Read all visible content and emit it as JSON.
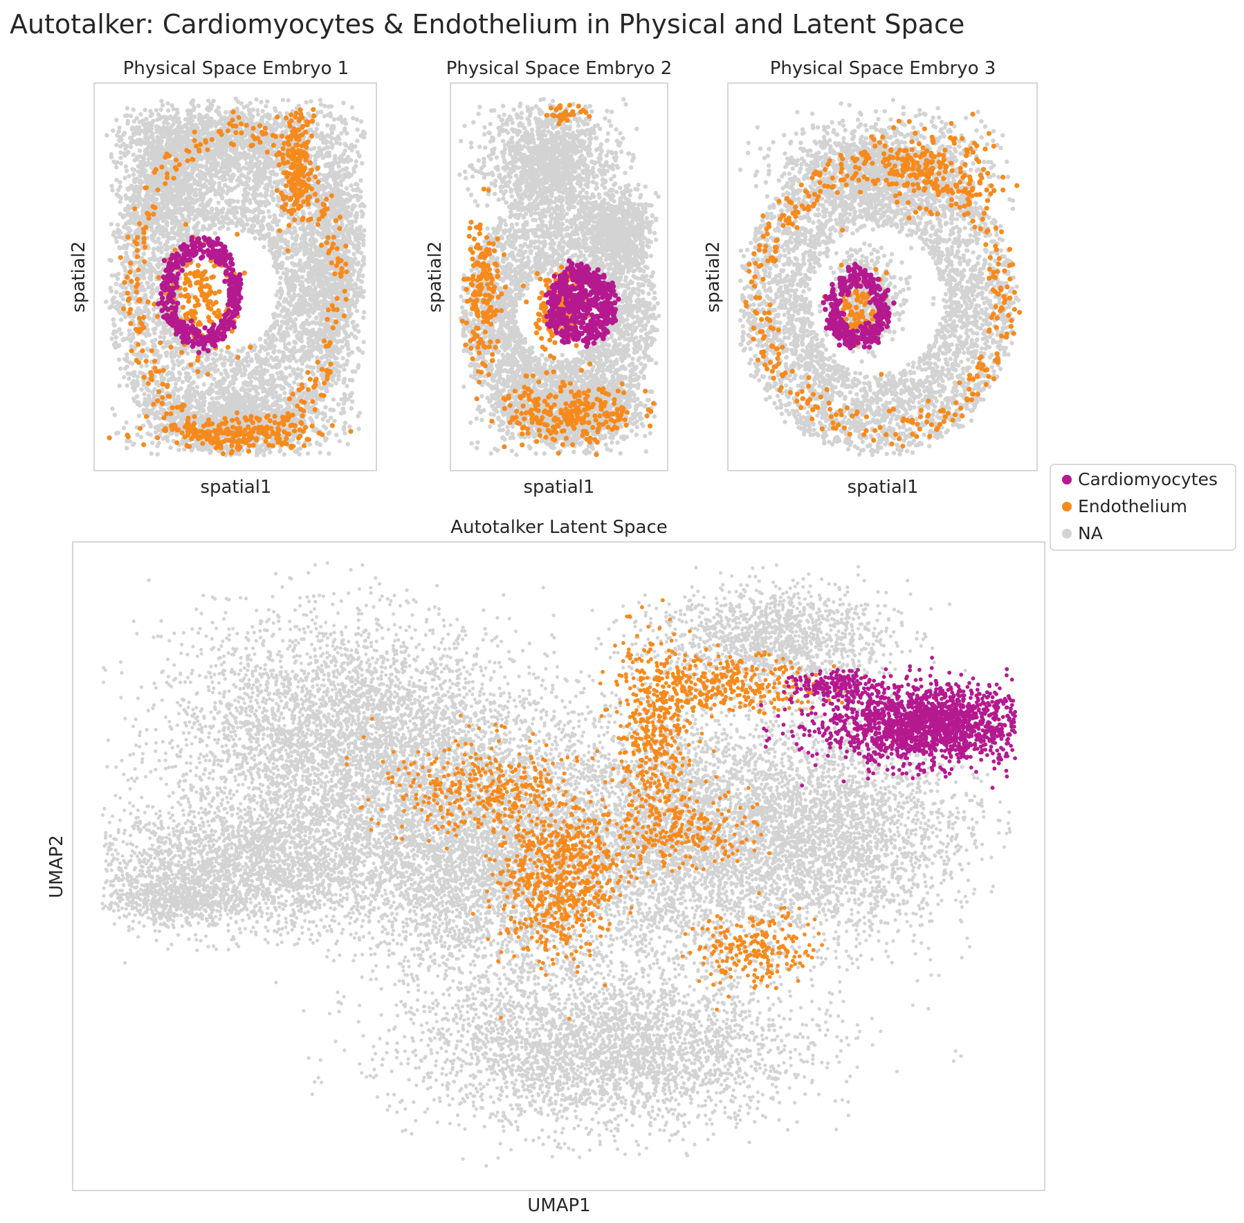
{
  "figure": {
    "title": "Autotalker: Cardiomyocytes & Endothelium in Physical and Latent Space"
  },
  "legend": {
    "placement": "right",
    "items": [
      {
        "label": "Cardiomyocytes",
        "color": "#b5198f"
      },
      {
        "label": "Endothelium",
        "color": "#f78a1c"
      },
      {
        "label": "NA",
        "color": "#d3d3d3"
      }
    ]
  },
  "chart_data": [
    {
      "type": "scatter",
      "title": "Physical Space Embryo 1",
      "xlabel": "spatial1",
      "ylabel": "spatial2",
      "ticks": "none",
      "grid": false,
      "series": [
        {
          "name": "NA",
          "color": "#d3d3d3",
          "marker_size": 3.2,
          "regions": [
            {
              "shape": "ring",
              "cx": 0.48,
              "cy": 0.53,
              "rx_in": 0.18,
              "rx_out": 0.43,
              "ry_in": 0.16,
              "ry_out": 0.45,
              "n": 3200
            },
            {
              "shape": "blob",
              "cx": 0.25,
              "cy": 0.25,
              "rx": 0.16,
              "ry": 0.18,
              "n": 900
            },
            {
              "shape": "blob",
              "cx": 0.5,
              "cy": 0.15,
              "rx": 0.35,
              "ry": 0.1,
              "n": 1100
            },
            {
              "shape": "blob",
              "cx": 0.85,
              "cy": 0.45,
              "rx": 0.12,
              "ry": 0.38,
              "n": 1200
            },
            {
              "shape": "blob",
              "cx": 0.5,
              "cy": 0.87,
              "rx": 0.34,
              "ry": 0.09,
              "n": 1000
            }
          ]
        },
        {
          "name": "Endothelium",
          "color": "#f78a1c",
          "marker_size": 3.6,
          "regions": [
            {
              "shape": "ring",
              "cx": 0.5,
              "cy": 0.52,
              "rx_in": 0.33,
              "rx_out": 0.4,
              "ry_in": 0.36,
              "ry_out": 0.44,
              "n": 320
            },
            {
              "shape": "blob",
              "cx": 0.72,
              "cy": 0.22,
              "rx": 0.06,
              "ry": 0.15,
              "n": 200
            },
            {
              "shape": "blob",
              "cx": 0.38,
              "cy": 0.56,
              "rx": 0.14,
              "ry": 0.14,
              "n": 180
            },
            {
              "shape": "blob",
              "cx": 0.5,
              "cy": 0.9,
              "rx": 0.3,
              "ry": 0.04,
              "n": 200
            }
          ]
        },
        {
          "name": "Cardiomyocytes",
          "color": "#b5198f",
          "marker_size": 3.8,
          "regions": [
            {
              "shape": "ring",
              "cx": 0.38,
              "cy": 0.54,
              "rx_in": 0.1,
              "rx_out": 0.14,
              "ry_in": 0.1,
              "ry_out": 0.14,
              "n": 420
            }
          ]
        }
      ]
    },
    {
      "type": "scatter",
      "title": "Physical Space Embryo 2",
      "xlabel": "spatial1",
      "ylabel": "spatial2",
      "ticks": "none",
      "grid": false,
      "series": [
        {
          "name": "NA",
          "color": "#d3d3d3",
          "marker_size": 3.2,
          "regions": [
            {
              "shape": "ring",
              "cx": 0.5,
              "cy": 0.6,
              "rx_in": 0.2,
              "rx_out": 0.45,
              "ry_in": 0.12,
              "ry_out": 0.32,
              "n": 3000
            },
            {
              "shape": "blob",
              "cx": 0.45,
              "cy": 0.2,
              "rx": 0.3,
              "ry": 0.14,
              "n": 1300
            },
            {
              "shape": "blob",
              "cx": 0.78,
              "cy": 0.38,
              "rx": 0.15,
              "ry": 0.1,
              "n": 600
            },
            {
              "shape": "blob",
              "cx": 0.55,
              "cy": 0.85,
              "rx": 0.35,
              "ry": 0.1,
              "n": 1000
            }
          ]
        },
        {
          "name": "Endothelium",
          "color": "#f78a1c",
          "marker_size": 3.6,
          "regions": [
            {
              "shape": "blob",
              "cx": 0.15,
              "cy": 0.55,
              "rx": 0.08,
              "ry": 0.18,
              "n": 180
            },
            {
              "shape": "blob",
              "cx": 0.55,
              "cy": 0.85,
              "rx": 0.3,
              "ry": 0.08,
              "n": 260
            },
            {
              "shape": "blob",
              "cx": 0.5,
              "cy": 0.58,
              "rx": 0.12,
              "ry": 0.1,
              "n": 180
            },
            {
              "shape": "blob",
              "cx": 0.52,
              "cy": 0.08,
              "rx": 0.08,
              "ry": 0.02,
              "n": 30
            }
          ]
        },
        {
          "name": "Cardiomyocytes",
          "color": "#b5198f",
          "marker_size": 3.8,
          "regions": [
            {
              "shape": "ring",
              "cx": 0.6,
              "cy": 0.57,
              "rx_in": 0.1,
              "rx_out": 0.16,
              "ry_in": 0.06,
              "ry_out": 0.1,
              "n": 380
            },
            {
              "shape": "blob",
              "cx": 0.6,
              "cy": 0.57,
              "rx": 0.1,
              "ry": 0.05,
              "n": 140
            }
          ]
        }
      ]
    },
    {
      "type": "scatter",
      "title": "Physical Space Embryo 3",
      "xlabel": "spatial1",
      "ylabel": "spatial2",
      "ticks": "none",
      "grid": false,
      "series": [
        {
          "name": "NA",
          "color": "#d3d3d3",
          "marker_size": 3.2,
          "regions": [
            {
              "shape": "ring",
              "cx": 0.48,
              "cy": 0.56,
              "rx_in": 0.22,
              "rx_out": 0.45,
              "ry_in": 0.2,
              "ry_out": 0.4,
              "n": 3400
            },
            {
              "shape": "blob",
              "cx": 0.5,
              "cy": 0.22,
              "rx": 0.34,
              "ry": 0.12,
              "n": 1100
            },
            {
              "shape": "blob",
              "cx": 0.45,
              "cy": 0.55,
              "rx": 0.12,
              "ry": 0.12,
              "n": 400
            }
          ]
        },
        {
          "name": "Endothelium",
          "color": "#f78a1c",
          "marker_size": 3.6,
          "regions": [
            {
              "shape": "ring",
              "cx": 0.5,
              "cy": 0.55,
              "rx_in": 0.36,
              "rx_out": 0.44,
              "ry_in": 0.3,
              "ry_out": 0.38,
              "n": 360
            },
            {
              "shape": "blob",
              "cx": 0.63,
              "cy": 0.22,
              "rx": 0.22,
              "ry": 0.1,
              "n": 220
            },
            {
              "shape": "blob",
              "cx": 0.42,
              "cy": 0.58,
              "rx": 0.08,
              "ry": 0.08,
              "n": 90
            }
          ]
        },
        {
          "name": "Cardiomyocytes",
          "color": "#b5198f",
          "marker_size": 3.8,
          "regions": [
            {
              "shape": "ring",
              "cx": 0.42,
              "cy": 0.58,
              "rx_in": 0.06,
              "rx_out": 0.1,
              "ry_in": 0.06,
              "ry_out": 0.1,
              "n": 320
            }
          ]
        }
      ]
    },
    {
      "type": "scatter",
      "title": "Autotalker Latent Space",
      "xlabel": "UMAP1",
      "ylabel": "UMAP2",
      "ticks": "none",
      "grid": false,
      "series": [
        {
          "name": "NA",
          "color": "#d3d3d3",
          "marker_size": 2.6,
          "regions": [
            {
              "shape": "blob",
              "cx": 0.28,
              "cy": 0.3,
              "rx": 0.18,
              "ry": 0.18,
              "n": 4200
            },
            {
              "shape": "blob",
              "cx": 0.18,
              "cy": 0.5,
              "rx": 0.16,
              "ry": 0.1,
              "n": 2400
            },
            {
              "shape": "blob",
              "cx": 0.42,
              "cy": 0.48,
              "rx": 0.14,
              "ry": 0.2,
              "n": 3800
            },
            {
              "shape": "blob",
              "cx": 0.62,
              "cy": 0.45,
              "rx": 0.15,
              "ry": 0.2,
              "n": 3600
            },
            {
              "shape": "blob",
              "cx": 0.78,
              "cy": 0.45,
              "rx": 0.14,
              "ry": 0.16,
              "n": 2600
            },
            {
              "shape": "blob",
              "cx": 0.55,
              "cy": 0.78,
              "rx": 0.2,
              "ry": 0.12,
              "n": 3200
            },
            {
              "shape": "blob",
              "cx": 0.72,
              "cy": 0.15,
              "rx": 0.12,
              "ry": 0.08,
              "n": 1400
            },
            {
              "shape": "blob",
              "cx": 0.1,
              "cy": 0.55,
              "rx": 0.06,
              "ry": 0.04,
              "n": 500
            }
          ]
        },
        {
          "name": "Endothelium",
          "color": "#f78a1c",
          "marker_size": 2.9,
          "regions": [
            {
              "shape": "blob",
              "cx": 0.5,
              "cy": 0.52,
              "rx": 0.06,
              "ry": 0.12,
              "n": 700
            },
            {
              "shape": "blob",
              "cx": 0.6,
              "cy": 0.28,
              "rx": 0.04,
              "ry": 0.14,
              "n": 420
            },
            {
              "shape": "blob",
              "cx": 0.42,
              "cy": 0.38,
              "rx": 0.1,
              "ry": 0.08,
              "n": 380
            },
            {
              "shape": "blob",
              "cx": 0.68,
              "cy": 0.22,
              "rx": 0.09,
              "ry": 0.04,
              "n": 320
            },
            {
              "shape": "blob",
              "cx": 0.7,
              "cy": 0.63,
              "rx": 0.06,
              "ry": 0.06,
              "n": 220
            },
            {
              "shape": "blob",
              "cx": 0.62,
              "cy": 0.44,
              "rx": 0.08,
              "ry": 0.06,
              "n": 260
            }
          ]
        },
        {
          "name": "Cardiomyocytes",
          "color": "#b5198f",
          "marker_size": 2.9,
          "regions": [
            {
              "shape": "blob",
              "cx": 0.88,
              "cy": 0.28,
              "rx": 0.11,
              "ry": 0.06,
              "n": 1800
            },
            {
              "shape": "blob",
              "cx": 0.78,
              "cy": 0.22,
              "rx": 0.04,
              "ry": 0.02,
              "n": 160
            }
          ]
        }
      ]
    }
  ]
}
